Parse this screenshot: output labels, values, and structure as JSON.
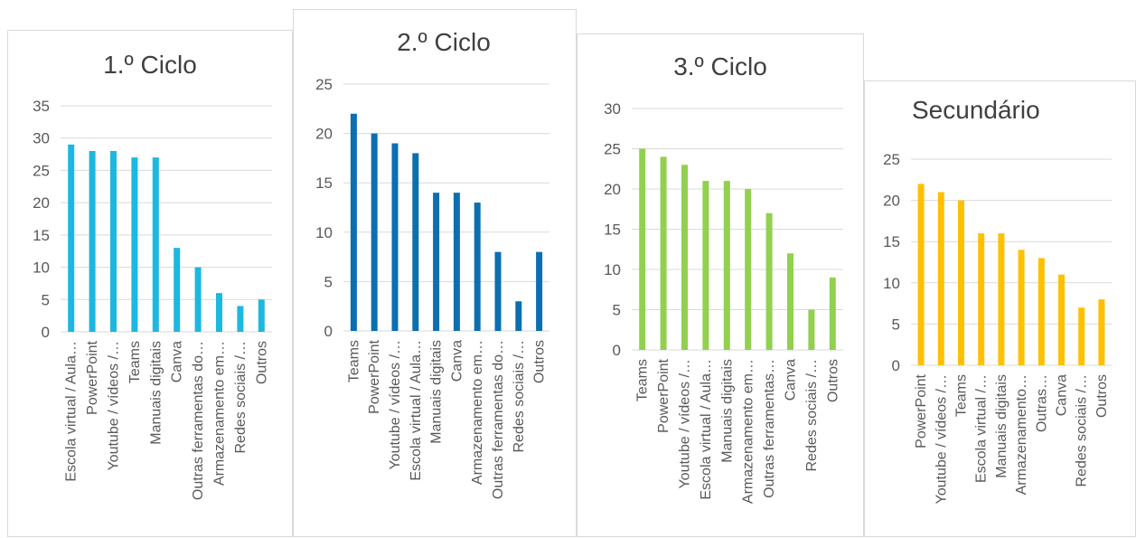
{
  "chart_data": [
    {
      "type": "bar",
      "title": "1.º Ciclo",
      "color": "#1CB8E0",
      "ylim": [
        0,
        35
      ],
      "yticks": [
        0,
        5,
        10,
        15,
        20,
        25,
        30,
        35
      ],
      "categories": [
        "Escola virtual / Aula…",
        "PowerPoint",
        "Youtube / vídeos /…",
        "Teams",
        "Manuais digitais",
        "Canva",
        "Outras ferramentas do…",
        "Armazenamento em…",
        "Redes sociais /…",
        "Outros"
      ],
      "values": [
        29,
        28,
        28,
        27,
        27,
        13,
        10,
        6,
        4,
        5
      ],
      "grid": true
    },
    {
      "type": "bar",
      "title": "2.º Ciclo",
      "color": "#0C6FB0",
      "ylim": [
        0,
        25
      ],
      "yticks": [
        0,
        5,
        10,
        15,
        20,
        25
      ],
      "categories": [
        "Teams",
        "PowerPoint",
        "Youtube / vídeos /…",
        "Escola virtual / Aula…",
        "Manuais digitais",
        "Canva",
        "Armazenamento em…",
        "Outras ferramentas do…",
        "Redes sociais /…",
        "Outros"
      ],
      "values": [
        22,
        20,
        19,
        18,
        14,
        14,
        13,
        8,
        3,
        8
      ],
      "grid": true
    },
    {
      "type": "bar",
      "title": "3.º Ciclo",
      "color": "#92D050",
      "ylim": [
        0,
        30
      ],
      "yticks": [
        0,
        5,
        10,
        15,
        20,
        25,
        30
      ],
      "categories": [
        "Teams",
        "PowerPoint",
        "Youtube / vídeos /…",
        "Escola virtual / Aula…",
        "Manuais digitais",
        "Armazenamento em…",
        "Outras ferramentas…",
        "Canva",
        "Redes sociais /…",
        "Outros"
      ],
      "values": [
        25,
        24,
        23,
        21,
        21,
        20,
        17,
        12,
        5,
        9
      ],
      "grid": true
    },
    {
      "type": "bar",
      "title": "Secundário",
      "color": "#FFC000",
      "ylim": [
        0,
        25
      ],
      "yticks": [
        0,
        5,
        10,
        15,
        20,
        25
      ],
      "categories": [
        "PowerPoint",
        "Youtube / vídeos /…",
        "Teams",
        "Escola virtual /…",
        "Manuais digitais",
        "Armazenamento…",
        "Outras…",
        "Canva",
        "Redes sociais /…",
        "Outros"
      ],
      "values": [
        22,
        21,
        20,
        16,
        16,
        14,
        13,
        11,
        7,
        8
      ],
      "grid": true
    }
  ]
}
